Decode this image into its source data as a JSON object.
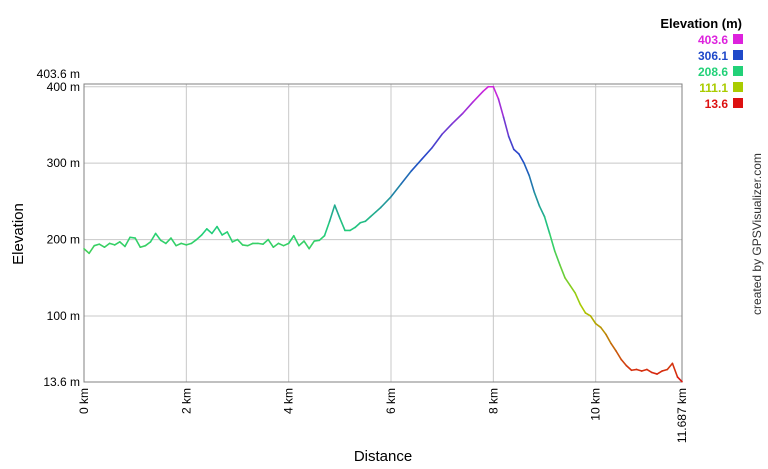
{
  "credit": "created by GPSVisualizer.com",
  "legend": {
    "title": "Elevation (m)",
    "items": [
      {
        "label": "403.6",
        "color": "#dd22dd"
      },
      {
        "label": "306.1",
        "color": "#1f49c9"
      },
      {
        "label": "208.6",
        "color": "#22d178"
      },
      {
        "label": "111.1",
        "color": "#aacc00"
      },
      {
        "label": "13.6",
        "color": "#dd1111"
      }
    ]
  },
  "chart_data": {
    "type": "line",
    "xlabel": "Distance",
    "ylabel": "Elevation",
    "x_unit": "km",
    "xlim": [
      0,
      11.687
    ],
    "ylim": [
      13.6,
      403.6
    ],
    "x_ticks": [
      {
        "value": 0,
        "label": "0 km"
      },
      {
        "value": 2,
        "label": "2 km"
      },
      {
        "value": 4,
        "label": "4 km"
      },
      {
        "value": 6,
        "label": "6 km"
      },
      {
        "value": 8,
        "label": "8 km"
      },
      {
        "value": 10,
        "label": "10 km"
      },
      {
        "value": 11.687,
        "label": "11.687 km"
      }
    ],
    "y_ticks": [
      {
        "value": 13.6,
        "label": "13.6 m"
      },
      {
        "value": 100,
        "label": "100 m"
      },
      {
        "value": 200,
        "label": "200 m"
      },
      {
        "value": 300,
        "label": "300 m"
      },
      {
        "value": 400,
        "label": "400 m"
      },
      {
        "value": 403.6,
        "label": "403.6 m"
      }
    ],
    "grid": true,
    "legend_position": "top-right",
    "color_scale": [
      {
        "value": 13.6,
        "color": "#dd1111"
      },
      {
        "value": 111.1,
        "color": "#aacc00"
      },
      {
        "value": 208.6,
        "color": "#22d178"
      },
      {
        "value": 306.1,
        "color": "#1f49c9"
      },
      {
        "value": 403.6,
        "color": "#dd22dd"
      }
    ],
    "series": [
      {
        "x": [
          0,
          0.1,
          0.2,
          0.3,
          0.4,
          0.5,
          0.6,
          0.7,
          0.8,
          0.9,
          1.0,
          1.1,
          1.2,
          1.3,
          1.4,
          1.5,
          1.6,
          1.7,
          1.8,
          1.9,
          2.0,
          2.1,
          2.2,
          2.3,
          2.4,
          2.5,
          2.6,
          2.7,
          2.8,
          2.9,
          3.0,
          3.1,
          3.2,
          3.3,
          3.4,
          3.5,
          3.6,
          3.7,
          3.8,
          3.9,
          4.0,
          4.1,
          4.2,
          4.3,
          4.4,
          4.5,
          4.6,
          4.7,
          4.8,
          4.9,
          5.0,
          5.1,
          5.2,
          5.3,
          5.4,
          5.5,
          5.6,
          5.7,
          5.8,
          6.0,
          6.2,
          6.4,
          6.6,
          6.8,
          7.0,
          7.2,
          7.4,
          7.6,
          7.8,
          7.9,
          8.0,
          8.1,
          8.2,
          8.3,
          8.4,
          8.5,
          8.6,
          8.7,
          8.8,
          8.9,
          9.0,
          9.1,
          9.2,
          9.3,
          9.4,
          9.5,
          9.6,
          9.7,
          9.8,
          9.9,
          10.0,
          10.1,
          10.2,
          10.3,
          10.4,
          10.5,
          10.6,
          10.7,
          10.8,
          10.9,
          11.0,
          11.1,
          11.2,
          11.3,
          11.4,
          11.5,
          11.6,
          11.687
        ],
        "y": [
          188,
          182,
          192,
          194,
          190,
          195,
          193,
          197,
          191,
          203,
          202,
          190,
          192,
          197,
          208,
          199,
          195,
          202,
          192,
          195,
          193,
          195,
          200,
          206,
          214,
          208,
          217,
          206,
          210,
          197,
          200,
          193,
          192,
          195,
          195,
          194,
          200,
          190,
          195,
          192,
          195,
          205,
          192,
          198,
          188,
          198,
          199,
          205,
          224,
          245,
          228,
          212,
          212,
          216,
          222,
          224,
          230,
          236,
          242,
          256,
          273,
          290,
          305,
          320,
          338,
          352,
          365,
          380,
          394,
          400,
          400,
          384,
          360,
          335,
          318,
          312,
          300,
          284,
          262,
          244,
          230,
          208,
          185,
          167,
          150,
          140,
          130,
          115,
          104,
          100,
          90,
          85,
          76,
          64,
          54,
          43,
          35,
          29,
          30,
          28,
          30,
          26,
          24,
          28,
          30,
          38,
          20,
          14
        ]
      }
    ]
  }
}
